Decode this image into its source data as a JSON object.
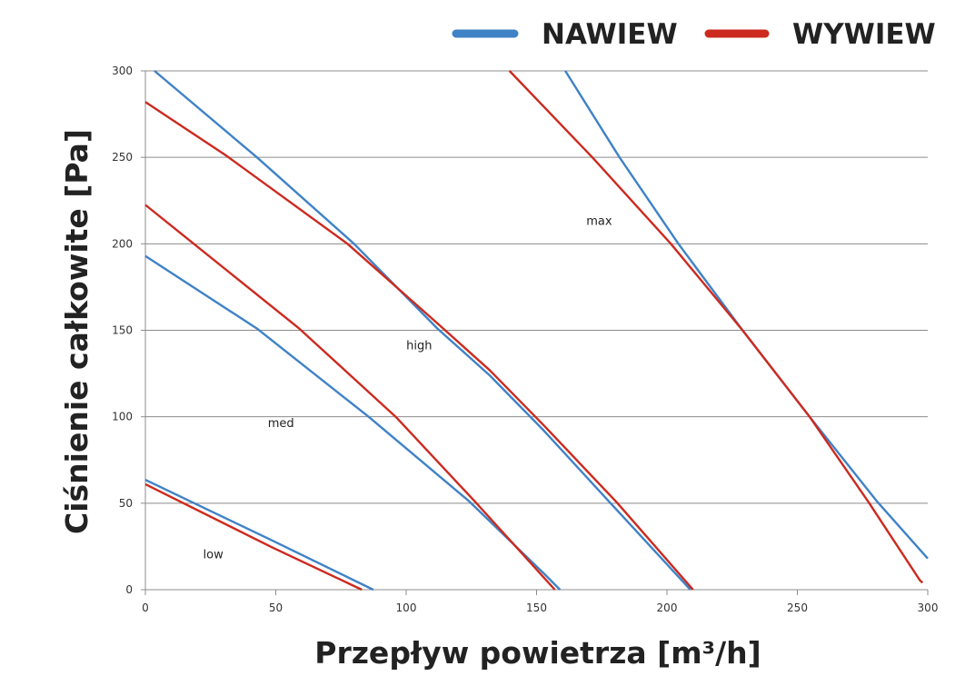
{
  "chart_data": {
    "type": "line",
    "title": "",
    "xlabel": "Przepływ powietrza [m³/h]",
    "ylabel": "Ciśnienie całkowite [Pa]",
    "xlim": [
      0,
      300
    ],
    "ylim": [
      0,
      300
    ],
    "xticks": [
      0,
      50,
      100,
      150,
      200,
      250,
      300
    ],
    "yticks": [
      0,
      50,
      100,
      150,
      200,
      250,
      300
    ],
    "grid": "horizontal",
    "legend_placement": "top-right",
    "legend": [
      {
        "name": "NAWIEW",
        "color": "#3f82c6"
      },
      {
        "name": "WYWIEW",
        "color": "#cc2a1f"
      }
    ],
    "annotations": [
      {
        "text": "max",
        "x": 174,
        "y": 211
      },
      {
        "text": "high",
        "x": 105,
        "y": 139
      },
      {
        "text": "med",
        "x": 52,
        "y": 94
      },
      {
        "text": "low",
        "x": 26,
        "y": 18
      }
    ],
    "series": [
      {
        "name": "NAWIEW",
        "level": "low",
        "color": "#3f82c6",
        "points": [
          [
            0,
            63.5
          ],
          [
            48.6,
            28.5
          ],
          [
            87.4,
            0
          ]
        ]
      },
      {
        "name": "WYWIEW",
        "level": "low",
        "color": "#cc2a1f",
        "points": [
          [
            0,
            61
          ],
          [
            48.6,
            24.5
          ],
          [
            83,
            0
          ]
        ]
      },
      {
        "name": "NAWIEW",
        "level": "med",
        "color": "#3f82c6",
        "points": [
          [
            0,
            193
          ],
          [
            42.8,
            151
          ],
          [
            85.6,
            100
          ],
          [
            123.8,
            51.6
          ],
          [
            152.8,
            9.4
          ],
          [
            159,
            0
          ]
        ]
      },
      {
        "name": "WYWIEW",
        "level": "med",
        "color": "#cc2a1f",
        "points": [
          [
            0,
            222.5
          ],
          [
            59,
            151
          ],
          [
            96,
            100
          ],
          [
            126,
            51.6
          ],
          [
            139,
            30
          ],
          [
            157,
            0
          ]
        ]
      },
      {
        "name": "NAWIEW",
        "level": "high",
        "color": "#3f82c6",
        "points": [
          [
            3.5,
            300
          ],
          [
            42.8,
            250
          ],
          [
            80,
            200
          ],
          [
            112,
            151
          ],
          [
            132,
            124
          ],
          [
            152.8,
            92
          ],
          [
            178,
            50.6
          ],
          [
            209,
            0
          ]
        ]
      },
      {
        "name": "WYWIEW",
        "level": "high",
        "color": "#cc2a1f",
        "points": [
          [
            0,
            282
          ],
          [
            31,
            251
          ],
          [
            77.5,
            200
          ],
          [
            112,
            154
          ],
          [
            132,
            127
          ],
          [
            152.8,
            95
          ],
          [
            180.7,
            50.6
          ],
          [
            210,
            0
          ]
        ]
      },
      {
        "name": "NAWIEW",
        "level": "max",
        "color": "#3f82c6",
        "points": [
          [
            161,
            300
          ],
          [
            181.8,
            250
          ],
          [
            204.4,
            200
          ],
          [
            229,
            150
          ],
          [
            254.7,
            100
          ],
          [
            280.8,
            50.6
          ],
          [
            300,
            18
          ]
        ]
      },
      {
        "name": "WYWIEW",
        "level": "max",
        "color": "#cc2a1f",
        "points": [
          [
            139.6,
            300
          ],
          [
            171.4,
            250
          ],
          [
            201.5,
            200
          ],
          [
            229,
            150
          ],
          [
            254.7,
            100
          ],
          [
            277.3,
            50.6
          ],
          [
            297,
            5.4
          ],
          [
            298,
            4
          ]
        ]
      }
    ]
  }
}
